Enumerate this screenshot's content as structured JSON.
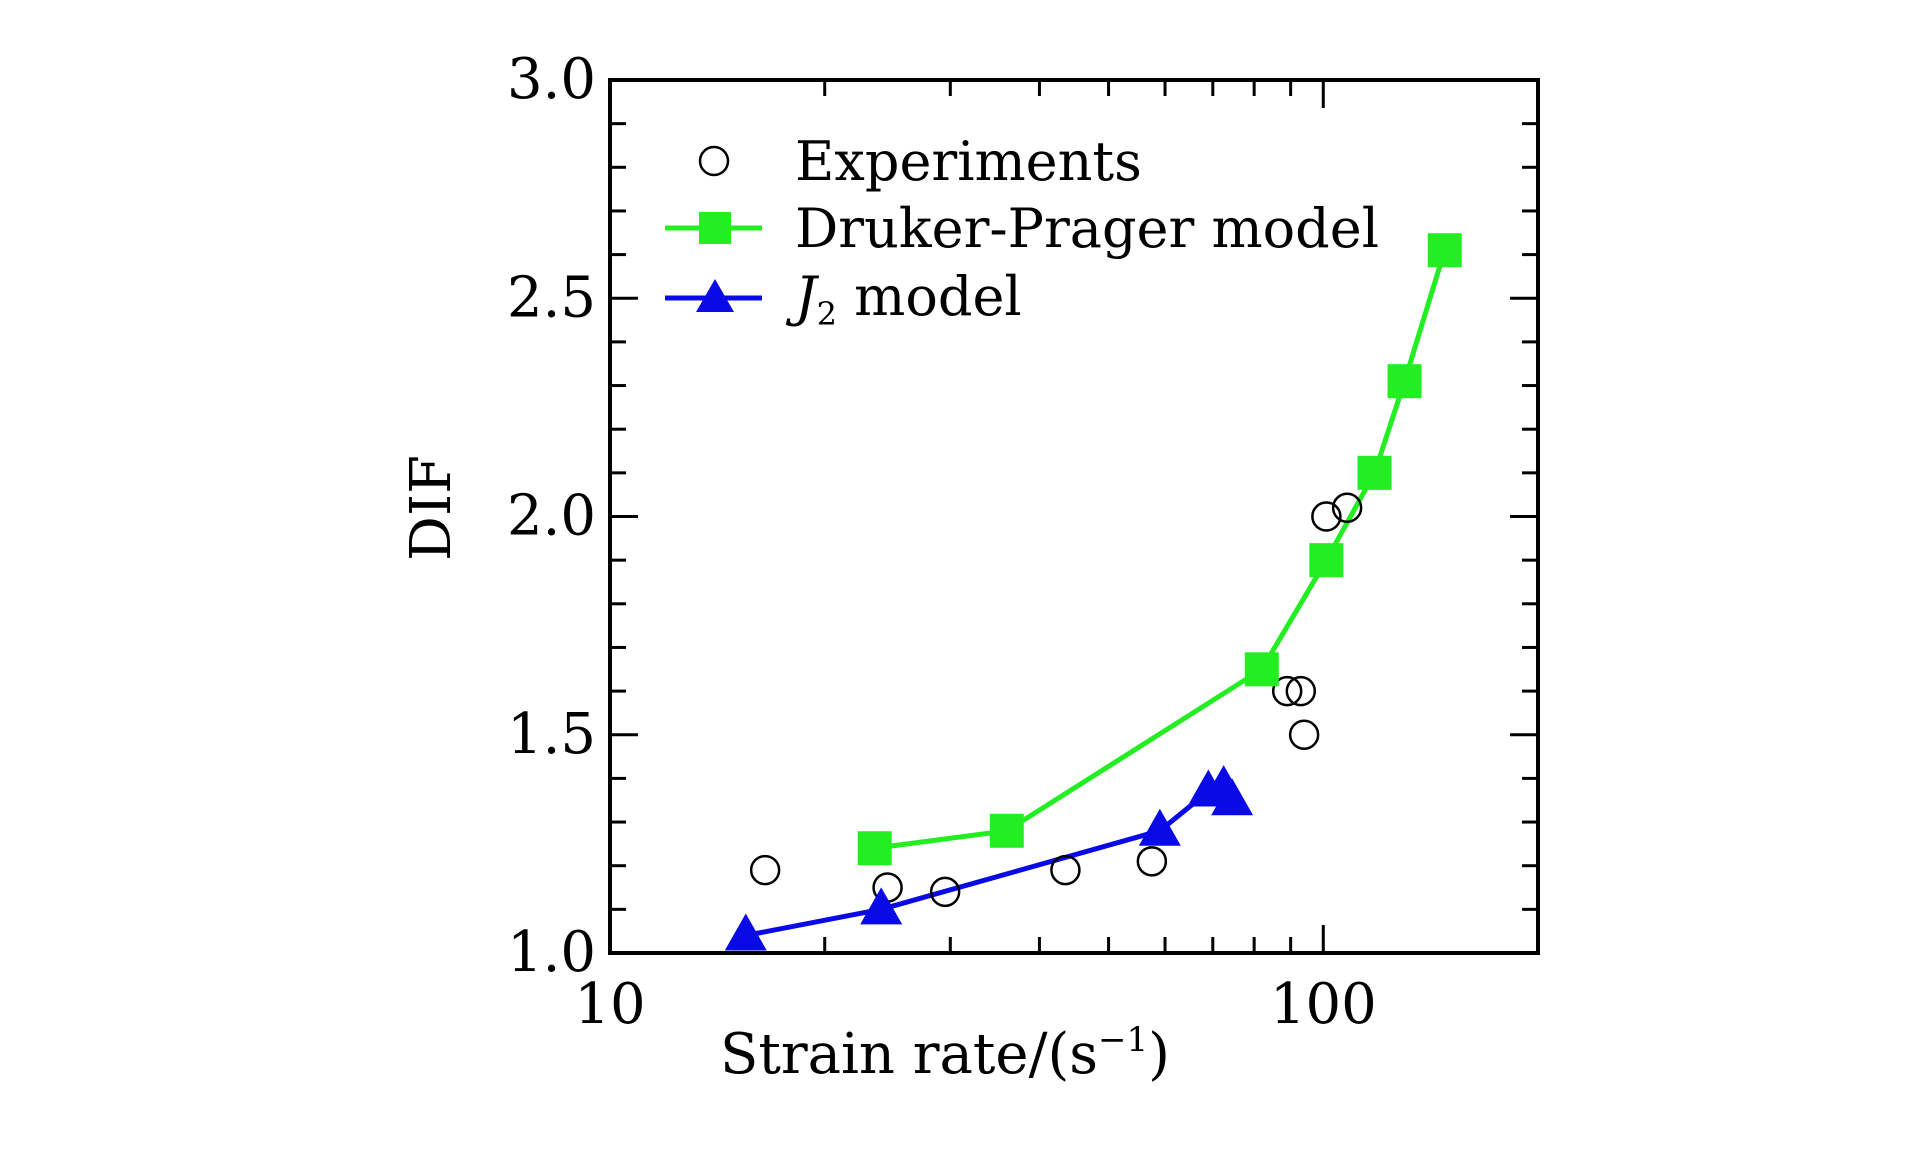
{
  "chart_data": {
    "type": "line",
    "xscale": "log",
    "xlim": [
      10,
      200
    ],
    "ylim": [
      1.0,
      3.0
    ],
    "xticks": [
      10,
      100
    ],
    "xtick_labels": [
      "10",
      "100"
    ],
    "yticks": [
      1.0,
      1.5,
      2.0,
      2.5,
      3.0
    ],
    "ytick_labels": [
      "1.0",
      "1.5",
      "2.0",
      "2.5",
      "3.0"
    ],
    "xlabel": "Strain rate/(s",
    "xlabel_sup": "−1",
    "xlabel_end": ")",
    "ylabel": "DIF",
    "legend_position": "top-left",
    "series": [
      {
        "name": "Experiments",
        "marker": "circle-open",
        "line": false,
        "color": "#000000",
        "points": [
          [
            16.5,
            1.19
          ],
          [
            24.5,
            1.15
          ],
          [
            29.5,
            1.14
          ],
          [
            43.5,
            1.19
          ],
          [
            57.5,
            1.21
          ],
          [
            89,
            1.6
          ],
          [
            93,
            1.6
          ],
          [
            94,
            1.5
          ],
          [
            101,
            2.0
          ],
          [
            108,
            2.02
          ]
        ]
      },
      {
        "name": "Druker-Prager model",
        "marker": "square",
        "line": true,
        "color": "#22ee22",
        "points": [
          [
            23.5,
            1.24
          ],
          [
            36,
            1.28
          ],
          [
            82,
            1.65
          ],
          [
            101,
            1.9
          ],
          [
            118,
            2.1
          ],
          [
            130,
            2.31
          ],
          [
            148,
            2.61
          ]
        ]
      },
      {
        "name": "J2 model",
        "legend_main": "J",
        "legend_sub": "2",
        "legend_rest": " model",
        "marker": "triangle",
        "line": true,
        "color": "#0a0ae6",
        "points": [
          [
            15.5,
            1.04
          ],
          [
            24,
            1.1
          ],
          [
            59,
            1.28
          ],
          [
            69,
            1.37
          ],
          [
            72.5,
            1.38
          ],
          [
            74.5,
            1.35
          ]
        ]
      }
    ]
  }
}
